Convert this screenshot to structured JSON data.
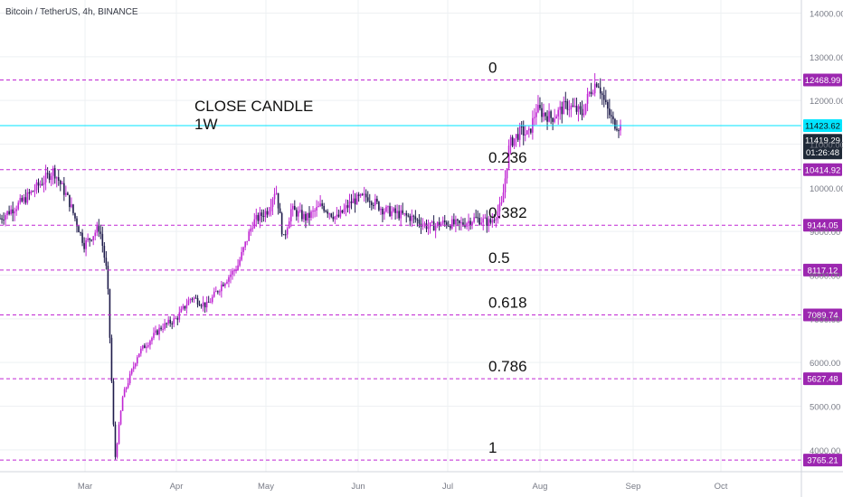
{
  "header": {
    "symbol_text": "Bitcoin / TetherUS, 4h, BINANCE"
  },
  "annotation": {
    "line1": "CLOSE CANDLE",
    "line2": "1W"
  },
  "colors": {
    "fib_line": "#c026d3",
    "fib_label_bg": "#9c27b0",
    "price_line": "#00e5ff",
    "price_tag_bg": "#1f2937",
    "candle": "#1e1b4b",
    "candle_up": "#c026d3",
    "grid": "#eef0f3",
    "axis_text": "#787b86"
  },
  "chart_data": {
    "type": "candlestick",
    "ylim": [
      3500,
      14300
    ],
    "y_ticks": [
      "4000.00",
      "5000.00",
      "6000.00",
      "7000.00",
      "8000.00",
      "9000.00",
      "10000.00",
      "11000.00",
      "12000.00",
      "13000.00",
      "14000.00"
    ],
    "x_ticks": [
      "Mar",
      "Apr",
      "May",
      "Jun",
      "Jul",
      "Aug",
      "Sep",
      "Oct"
    ],
    "fib_levels": [
      {
        "ratio": "0",
        "price": "12468.99",
        "value": 12468.99
      },
      {
        "ratio": "0.236",
        "price": "10414.92",
        "value": 10414.92
      },
      {
        "ratio": "0.382",
        "price": "9144.05",
        "value": 9144.05
      },
      {
        "ratio": "0.5",
        "price": "8117.12",
        "value": 8117.12
      },
      {
        "ratio": "0.618",
        "price": "7089.74",
        "value": 7089.74
      },
      {
        "ratio": "0.786",
        "price": "5627.48",
        "value": 5627.48
      },
      {
        "ratio": "1",
        "price": "3765.21",
        "value": 3765.21
      }
    ],
    "reference_line": {
      "price": "11423.62",
      "value": 11423.62
    },
    "last_price": {
      "price": "11419.29",
      "value": 11419.29,
      "countdown": "01:26:48"
    },
    "price_path": [
      [
        0.0,
        9300
      ],
      [
        0.03,
        9700
      ],
      [
        0.07,
        10400
      ],
      [
        0.09,
        9700
      ],
      [
        0.11,
        8700
      ],
      [
        0.13,
        9100
      ],
      [
        0.14,
        8000
      ],
      [
        0.15,
        3765
      ],
      [
        0.16,
        5200
      ],
      [
        0.18,
        6200
      ],
      [
        0.21,
        6800
      ],
      [
        0.23,
        7000
      ],
      [
        0.25,
        7500
      ],
      [
        0.27,
        7300
      ],
      [
        0.29,
        7800
      ],
      [
        0.31,
        8200
      ],
      [
        0.33,
        9200
      ],
      [
        0.35,
        9500
      ],
      [
        0.36,
        10000
      ],
      [
        0.37,
        8800
      ],
      [
        0.38,
        9500
      ],
      [
        0.4,
        9300
      ],
      [
        0.42,
        9600
      ],
      [
        0.44,
        9300
      ],
      [
        0.46,
        9700
      ],
      [
        0.48,
        9800
      ],
      [
        0.5,
        9500
      ],
      [
        0.52,
        9400
      ],
      [
        0.54,
        9300
      ],
      [
        0.56,
        9100
      ],
      [
        0.58,
        9200
      ],
      [
        0.6,
        9150
      ],
      [
        0.62,
        9300
      ],
      [
        0.64,
        9200
      ],
      [
        0.655,
        9600
      ],
      [
        0.665,
        11000
      ],
      [
        0.68,
        11300
      ],
      [
        0.69,
        11200
      ],
      [
        0.7,
        11800
      ],
      [
        0.72,
        11600
      ],
      [
        0.74,
        11900
      ],
      [
        0.76,
        11700
      ],
      [
        0.77,
        12200
      ],
      [
        0.78,
        12469
      ],
      [
        0.79,
        11900
      ],
      [
        0.8,
        11500
      ],
      [
        0.81,
        11400
      ]
    ]
  }
}
